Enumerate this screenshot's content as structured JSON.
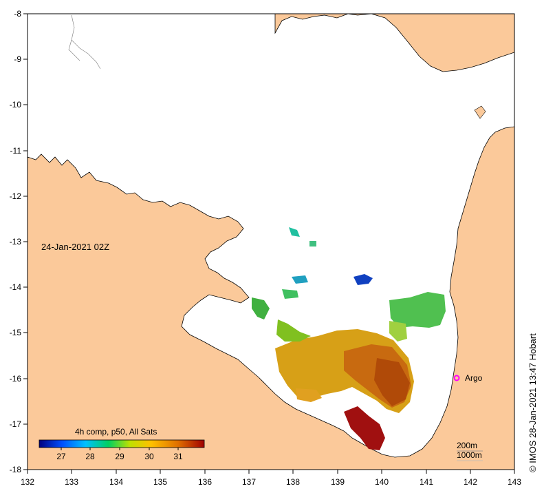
{
  "map": {
    "date_label": "24-Jan-2021 02Z",
    "x_ticks": [
      "132",
      "133",
      "134",
      "135",
      "136",
      "137",
      "138",
      "139",
      "140",
      "141",
      "142",
      "143"
    ],
    "y_ticks": [
      "-8",
      "-9",
      "-10",
      "-11",
      "-12",
      "-13",
      "-14",
      "-15",
      "-16",
      "-17",
      "-18"
    ],
    "land_color": "#fbc99a",
    "ocean_color": "#ffffff"
  },
  "legend": {
    "title": "4h comp, p50, All Sats",
    "ticks": [
      "27",
      "28",
      "29",
      "30",
      "31"
    ],
    "colors": [
      "#000080",
      "#0050ff",
      "#00c0ff",
      "#00d060",
      "#c0e000",
      "#ffc000",
      "#e07000",
      "#a00000"
    ]
  },
  "marker": {
    "label": "Argo",
    "color": "#ff00ff"
  },
  "scale": {
    "line1": "200m",
    "line2": "1000m"
  },
  "credit": "© IMOS 28-Jan-2021 13:47 Hobart"
}
